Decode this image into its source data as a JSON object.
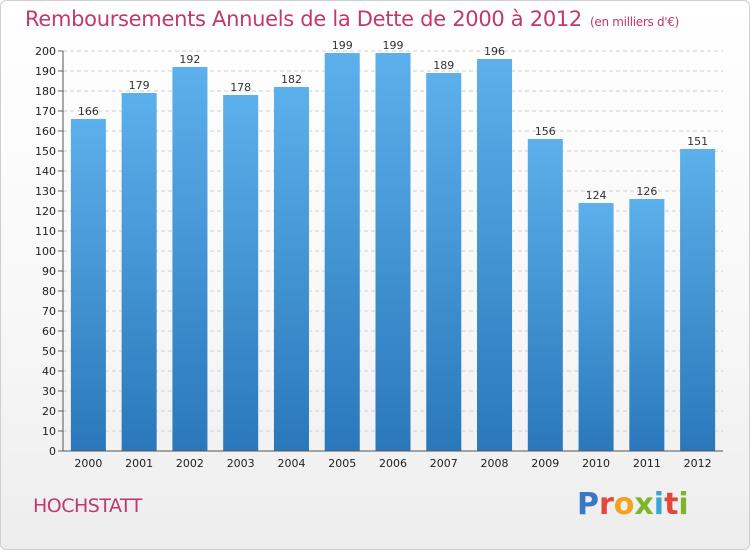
{
  "chart_data": {
    "type": "bar",
    "title": "Remboursements Annuels de la Dette de 2000 à 2012",
    "subtitle": "(en milliers d'€)",
    "categories": [
      "2000",
      "2001",
      "2002",
      "2003",
      "2004",
      "2005",
      "2006",
      "2007",
      "2008",
      "2009",
      "2010",
      "2011",
      "2012"
    ],
    "values": [
      166,
      179,
      192,
      178,
      182,
      199,
      199,
      189,
      196,
      156,
      124,
      126,
      151
    ],
    "xlabel": "",
    "ylabel": "",
    "ylim": [
      0,
      200
    ],
    "ytick_step": 10,
    "grid": true,
    "bar_color_top": "#5cb0eb",
    "bar_color_bottom": "#2a78bb",
    "grid_color": "#d0d0d0"
  },
  "footer": {
    "city": "HOCHSTATT",
    "logo_letters": [
      "P",
      "r",
      "o",
      "x",
      "i",
      "t",
      "i"
    ]
  },
  "colors": {
    "accent": "#c0386c"
  }
}
